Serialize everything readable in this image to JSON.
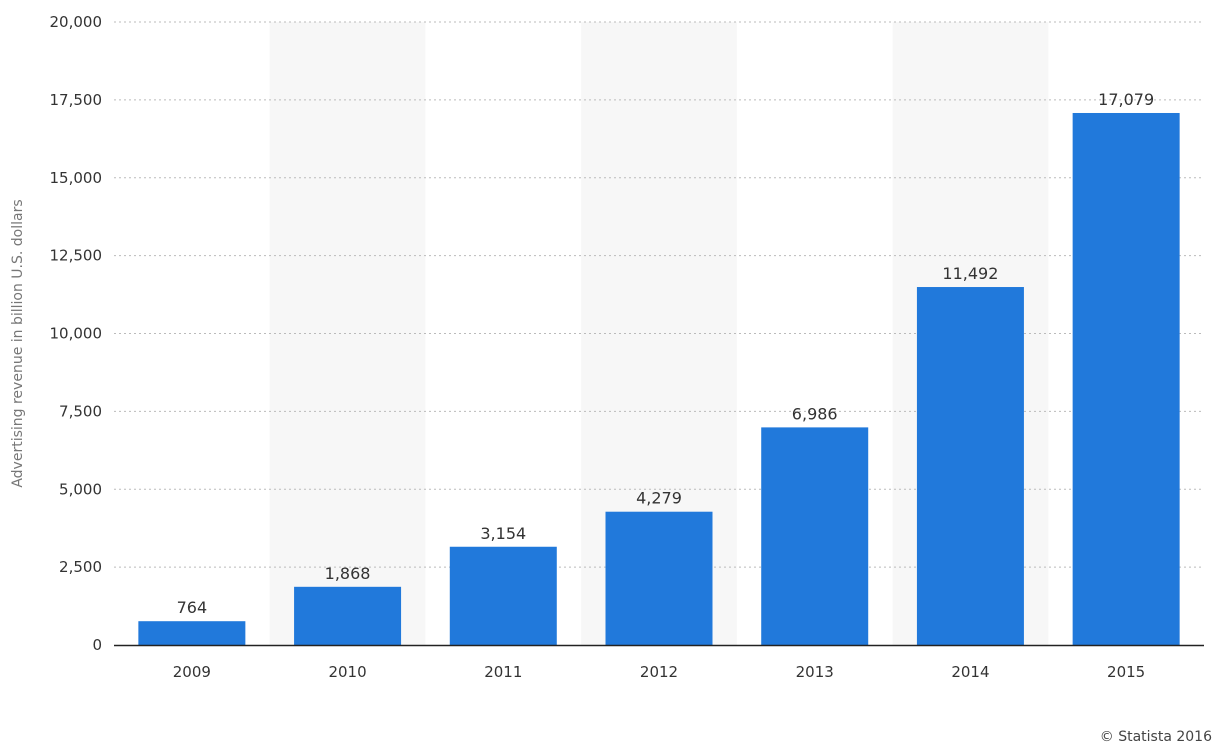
{
  "chart_data": {
    "type": "bar",
    "categories": [
      "2009",
      "2010",
      "2011",
      "2012",
      "2013",
      "2014",
      "2015"
    ],
    "values": [
      764,
      1868,
      3154,
      4279,
      6986,
      11492,
      17079
    ],
    "data_labels": [
      "764",
      "1,868",
      "3,154",
      "4,279",
      "6,986",
      "11,492",
      "17,079"
    ],
    "ylabel": "Advertising revenue in billion U.S. dollars",
    "xlabel": "",
    "ylim": [
      0,
      20000
    ],
    "yticks": [
      0,
      2500,
      5000,
      7500,
      10000,
      12500,
      15000,
      17500,
      20000
    ],
    "ytick_labels": [
      "0",
      "2,500",
      "5,000",
      "7,500",
      "10,000",
      "12,500",
      "15,000",
      "17,500",
      "20,000"
    ],
    "grid": true,
    "bar_color": "#2179db",
    "alt_band_color": "#f7f7f7",
    "grid_color": "#bbbbbb",
    "axis_color": "#222222"
  },
  "credit": "© Statista 2016"
}
